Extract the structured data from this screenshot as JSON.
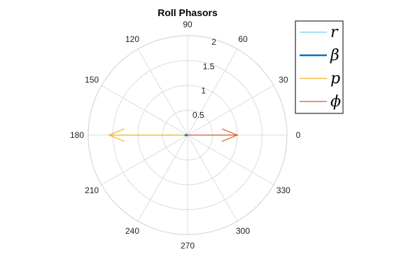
{
  "chart_data": {
    "type": "polar",
    "title": "Roll Phasors",
    "radial_ticks": [
      "0.5",
      "1",
      "1.5",
      "2"
    ],
    "radial_max": 2,
    "angle_ticks": [
      "0",
      "30",
      "60",
      "90",
      "120",
      "150",
      "180",
      "210",
      "240",
      "270",
      "300",
      "330"
    ],
    "grid": true,
    "legend_position": "right",
    "series": [
      {
        "name": "r",
        "color": "#4DBEEE",
        "angle_deg": 180,
        "magnitude": 0.03,
        "line_width": 1
      },
      {
        "name": "β",
        "color": "#0072BD",
        "angle_deg": 180,
        "magnitude": 0.06,
        "line_width": 2.5
      },
      {
        "name": "p",
        "color": "#EDB120",
        "angle_deg": 180,
        "magnitude": 1.58,
        "line_width": 1.2
      },
      {
        "name": "ϕ",
        "color": "#D95319",
        "angle_deg": 0,
        "magnitude": 1.0,
        "line_width": 1.2
      }
    ]
  }
}
